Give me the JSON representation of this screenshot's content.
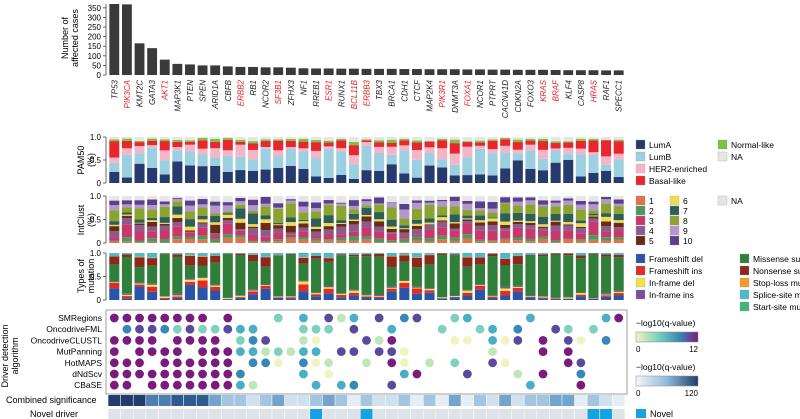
{
  "chart_data": {
    "type": "bar",
    "genes": [
      "TP53",
      "PIK3CA",
      "KMT2C",
      "GATA3",
      "AKT1",
      "MAP3K1",
      "PTEN",
      "SPEN",
      "ARID1A",
      "CBFB",
      "ERBB2",
      "RB1",
      "NCOR2",
      "SF3B1",
      "ZFHX3",
      "NF1",
      "RREB1",
      "ESR1",
      "RUNX1",
      "BCL11B",
      "ERBB3",
      "TBX3",
      "BRCA1",
      "CDH1",
      "CTCF",
      "MAP2K4",
      "PIK3R1",
      "DNMT3A",
      "FOXA1",
      "NCOR1",
      "PTPRT",
      "CACNA1D",
      "CDKN2A",
      "FOXO3",
      "KRAS",
      "BRAF",
      "KLF4",
      "CASP8",
      "HRAS",
      "RAF1",
      "SPECC1"
    ],
    "novel_red_genes": [
      "PIK3CA",
      "AKT1",
      "ERBB2",
      "SF3B1",
      "ESR1",
      "BCL11B",
      "ERBB3",
      "PIK3R1",
      "FOXA1",
      "KRAS",
      "BRAF",
      "HRAS"
    ],
    "affected_cases": [
      370,
      368,
      165,
      140,
      80,
      58,
      55,
      50,
      50,
      45,
      42,
      42,
      40,
      40,
      38,
      35,
      34,
      34,
      33,
      33,
      32,
      32,
      32,
      31,
      31,
      30,
      30,
      30,
      29,
      29,
      28,
      28,
      27,
      27,
      27,
      26,
      25,
      25,
      25,
      24,
      24
    ],
    "bar_axis": {
      "label_line1": "Number of",
      "label_line2": "affected cases",
      "ticks": [
        "0",
        "50",
        "100",
        "150",
        "200",
        "250",
        "300",
        "350"
      ],
      "ylim": [
        0,
        370
      ]
    },
    "pam50": {
      "label_line1": "PAM50",
      "label_line2": "(%)",
      "ticks": [
        "0",
        "0.5",
        "1.0"
      ],
      "categories": [
        {
          "name": "LumA",
          "color": "#273a6e"
        },
        {
          "name": "LumB",
          "color": "#9ccfe0"
        },
        {
          "name": "HER2-enriched",
          "color": "#f4b6c6"
        },
        {
          "name": "Basal-like",
          "color": "#e8262d"
        },
        {
          "name": "Normal-like",
          "color": "#7dc142"
        },
        {
          "name": "NA",
          "color": "#e6e6e6"
        }
      ]
    },
    "intclust": {
      "label_line1": "IntClust",
      "label_line2": "(%)",
      "ticks": [
        "0",
        "0.5",
        "1.0"
      ],
      "categories": [
        {
          "name": "1",
          "color": "#e0734a"
        },
        {
          "name": "2",
          "color": "#4c9a5b"
        },
        {
          "name": "3",
          "color": "#c8386a"
        },
        {
          "name": "4",
          "color": "#8c5a8f"
        },
        {
          "name": "5",
          "color": "#6b2a13"
        },
        {
          "name": "6",
          "color": "#eadd52"
        },
        {
          "name": "7",
          "color": "#2f5d57"
        },
        {
          "name": "8",
          "color": "#8aa42f"
        },
        {
          "name": "9",
          "color": "#b498c9"
        },
        {
          "name": "10",
          "color": "#5a3f8f"
        },
        {
          "name": "NA",
          "color": "#e6e6e6"
        }
      ]
    },
    "mutation": {
      "label_line1": "Types of",
      "label_line2": "mutation",
      "ticks": [
        "0",
        "0.5",
        "1.0"
      ],
      "categories": [
        {
          "name": "Frameshift del",
          "color": "#2a54a6"
        },
        {
          "name": "Frameshift ins",
          "color": "#e32b26"
        },
        {
          "name": "In-frame del",
          "color": "#f0e34a"
        },
        {
          "name": "In-frame ins",
          "color": "#7a4fa0"
        },
        {
          "name": "Missense subs",
          "color": "#2f7f3a"
        },
        {
          "name": "Nonsense subs",
          "color": "#8b2a1c"
        },
        {
          "name": "Stop-loss mut",
          "color": "#f29a2e"
        },
        {
          "name": "Splice-site mut",
          "color": "#4fb8cf"
        },
        {
          "name": "Start-site mut",
          "color": "#3fb37a"
        }
      ]
    },
    "algorithms": {
      "group_label_line1": "Driver detection",
      "group_label_line2": "algorithm",
      "names": [
        "SMRegions",
        "OncodriveFML",
        "OncodriveCLUSTL",
        "MutPanning",
        "HotMAPS",
        "dNdScv",
        "CBaSE"
      ]
    },
    "q_scale": {
      "label": "−log10(q-value)",
      "min": "0",
      "max": "12"
    },
    "combined": {
      "row_label": "Combined significance",
      "label": "−log10(q-value)",
      "min": "0",
      "max": "120"
    },
    "novel": {
      "row_label": "Novel driver",
      "legend": "Novel",
      "color": "#14a3e0",
      "flags": [
        0,
        0,
        0,
        0,
        0,
        0,
        0,
        0,
        0,
        0,
        0,
        0,
        0,
        0,
        0,
        0,
        0,
        0,
        0,
        0,
        0,
        0,
        0,
        0,
        0,
        0,
        0,
        0,
        0,
        0,
        0,
        0,
        0,
        0,
        0,
        0,
        0,
        0,
        0,
        0,
        0
      ]
    }
  }
}
